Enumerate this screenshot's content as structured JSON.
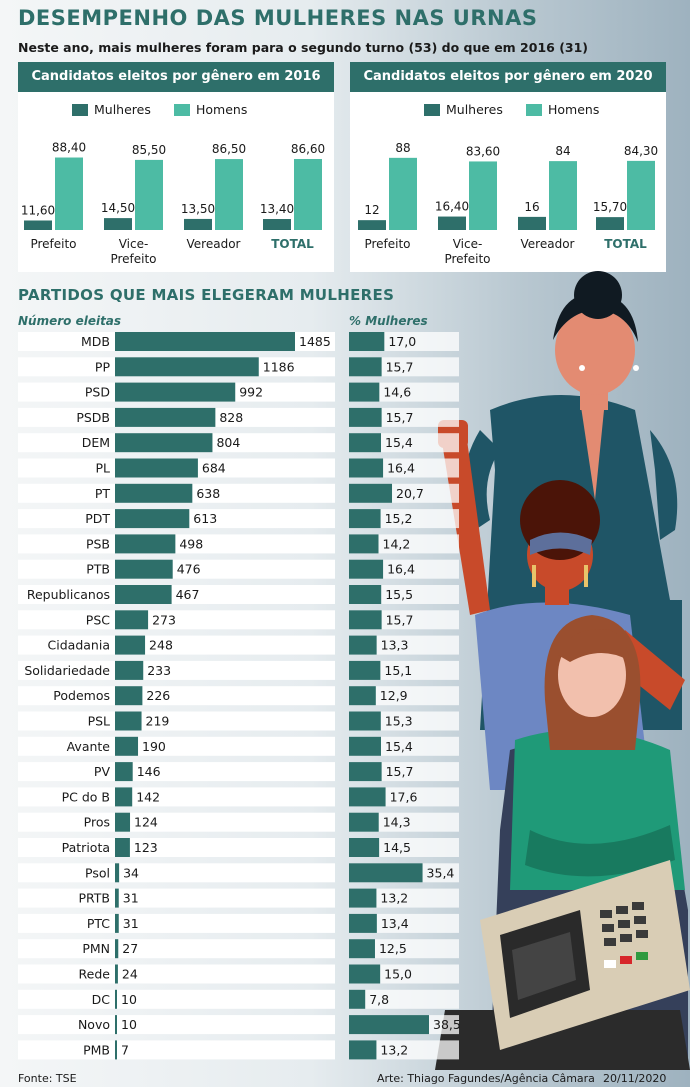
{
  "header": {
    "title": "DESEMPENHO DAS MULHERES NAS URNAS",
    "subtitle": "Neste ano, mais mulheres foram para o segundo turno (53) do que em 2016 (31)"
  },
  "colors": {
    "women": "#2e6f6a",
    "men": "#4dbba4",
    "party_bar": "#2e6f6a",
    "row_bg": "#ffffff"
  },
  "legend": {
    "women": "Mulheres",
    "men": "Homens"
  },
  "chart_data": [
    {
      "type": "bar",
      "title": "Candidatos eleitos por gênero em 2016 (%)",
      "categories": [
        "Prefeito",
        "Vice-Prefeito",
        "Vereador",
        "TOTAL"
      ],
      "category_lines": [
        [
          "Prefeito"
        ],
        [
          "Vice-",
          "Prefeito"
        ],
        [
          "Vereador"
        ],
        [
          "TOTAL"
        ]
      ],
      "series": [
        {
          "name": "Mulheres",
          "values": [
            11.6,
            14.5,
            13.5,
            13.4
          ],
          "labels": [
            "11,60",
            "14,50",
            "13,50",
            "13,40"
          ]
        },
        {
          "name": "Homens",
          "values": [
            88.4,
            85.5,
            86.5,
            86.6
          ],
          "labels": [
            "88,40",
            "85,50",
            "86,50",
            "86,60"
          ]
        }
      ],
      "ylim": [
        0,
        100
      ]
    },
    {
      "type": "bar",
      "title": "Candidatos eleitos por gênero em 2020 (%)",
      "categories": [
        "Prefeito",
        "Vice-Prefeito",
        "Vereador",
        "TOTAL"
      ],
      "category_lines": [
        [
          "Prefeito"
        ],
        [
          "Vice-",
          "Prefeito"
        ],
        [
          "Vereador"
        ],
        [
          "TOTAL"
        ]
      ],
      "series": [
        {
          "name": "Mulheres",
          "values": [
            12,
            16.4,
            16,
            15.7
          ],
          "labels": [
            "12",
            "16,40",
            "16",
            "15,70"
          ]
        },
        {
          "name": "Homens",
          "values": [
            88,
            83.6,
            84,
            84.3
          ],
          "labels": [
            "88",
            "83,60",
            "84",
            "84,30"
          ]
        }
      ],
      "ylim": [
        0,
        100
      ]
    },
    {
      "type": "bar",
      "orientation": "horizontal",
      "title": "PARTIDOS QUE MAIS ELEGERAM MULHERES",
      "columns": [
        "Número eleitas",
        "% Mulheres"
      ],
      "categories": [
        "MDB",
        "PP",
        "PSD",
        "PSDB",
        "DEM",
        "PL",
        "PT",
        "PDT",
        "PSB",
        "PTB",
        "Republicanos",
        "PSC",
        "Cidadania",
        "Solidariedade",
        "Podemos",
        "PSL",
        "Avante",
        "PV",
        "PC do B",
        "Pros",
        "Patriota",
        "Psol",
        "PRTB",
        "PTC",
        "PMN",
        "Rede",
        "DC",
        "Novo",
        "PMB"
      ],
      "series": [
        {
          "name": "Número eleitas",
          "values": [
            1485,
            1186,
            992,
            828,
            804,
            684,
            638,
            613,
            498,
            476,
            467,
            273,
            248,
            233,
            226,
            219,
            190,
            146,
            142,
            124,
            123,
            34,
            31,
            31,
            27,
            24,
            10,
            10,
            7
          ]
        },
        {
          "name": "% Mulheres",
          "values": [
            17.0,
            15.7,
            14.6,
            15.7,
            15.4,
            16.4,
            20.7,
            15.2,
            14.2,
            16.4,
            15.5,
            15.7,
            13.3,
            15.1,
            12.9,
            15.3,
            15.4,
            15.7,
            17.6,
            14.3,
            14.5,
            35.4,
            13.2,
            13.4,
            12.5,
            15.0,
            7.8,
            38.5,
            13.2
          ],
          "labels": [
            "17,0",
            "15,7",
            "14,6",
            "15,7",
            "15,4",
            "16,4",
            "20,7",
            "15,2",
            "14,2",
            "16,4",
            "15,5",
            "15,7",
            "13,3",
            "15,1",
            "12,9",
            "15,3",
            "15,4",
            "15,7",
            "17,6",
            "14,3",
            "14,5",
            "35,4",
            "13,2",
            "13,4",
            "12,5",
            "15,0",
            "7,8",
            "38,5",
            "13,2"
          ]
        }
      ]
    }
  ],
  "footer": {
    "source": "Fonte: TSE",
    "credit": "Arte: Thiago Fagundes/Agência Câmara",
    "date": "20/11/2020"
  }
}
